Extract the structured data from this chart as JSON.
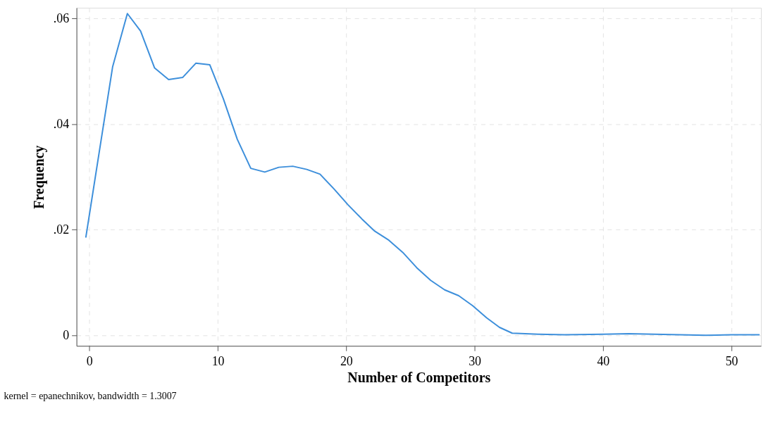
{
  "chart_data": {
    "type": "line",
    "xlabel": "Number of Competitors",
    "ylabel": "Frequency",
    "annotations": [
      "kernel = epanechnikov, bandwidth = 1.3007"
    ],
    "series": [
      {
        "color": "#3d8fdb",
        "x": [
          -0.27,
          1.81,
          2.96,
          3.99,
          5.08,
          6.17,
          7.26,
          8.29,
          9.38,
          10.43,
          11.52,
          12.57,
          13.66,
          14.75,
          15.84,
          16.93,
          17.96,
          19.05,
          20.14,
          21.23,
          22.23,
          23.32,
          24.4,
          25.49,
          26.58,
          27.67,
          28.76,
          29.85,
          30.94,
          31.94,
          32.93,
          35,
          37,
          40,
          42,
          44,
          46,
          48,
          50,
          52.15
        ],
        "values": [
          0.0186,
          0.0508,
          0.0609,
          0.0576,
          0.0506,
          0.0484,
          0.0488,
          0.0515,
          0.0512,
          0.0448,
          0.0371,
          0.0316,
          0.0309,
          0.0318,
          0.032,
          0.0314,
          0.0305,
          0.0277,
          0.0247,
          0.022,
          0.0197,
          0.018,
          0.0157,
          0.0128,
          0.0104,
          0.0086,
          0.0075,
          0.0056,
          0.0033,
          0.0015,
          0.0004,
          0.0002,
          0.0001,
          0.0002,
          0.0003,
          0.0002,
          0.0001,
          0.0,
          0.0001,
          0.0001
        ]
      }
    ],
    "xlim": [
      -1,
      52.3
    ],
    "ylim": [
      -0.002,
      0.062
    ],
    "xticks": [
      0,
      10,
      20,
      30,
      40,
      50
    ],
    "yticks": [
      0,
      {
        "value": 0.02,
        "label": ".02"
      },
      {
        "value": 0.04,
        "label": ".04"
      },
      {
        "value": 0.06,
        "label": ".06"
      }
    ],
    "grid": true,
    "marker": "none",
    "line_style": "solid"
  }
}
